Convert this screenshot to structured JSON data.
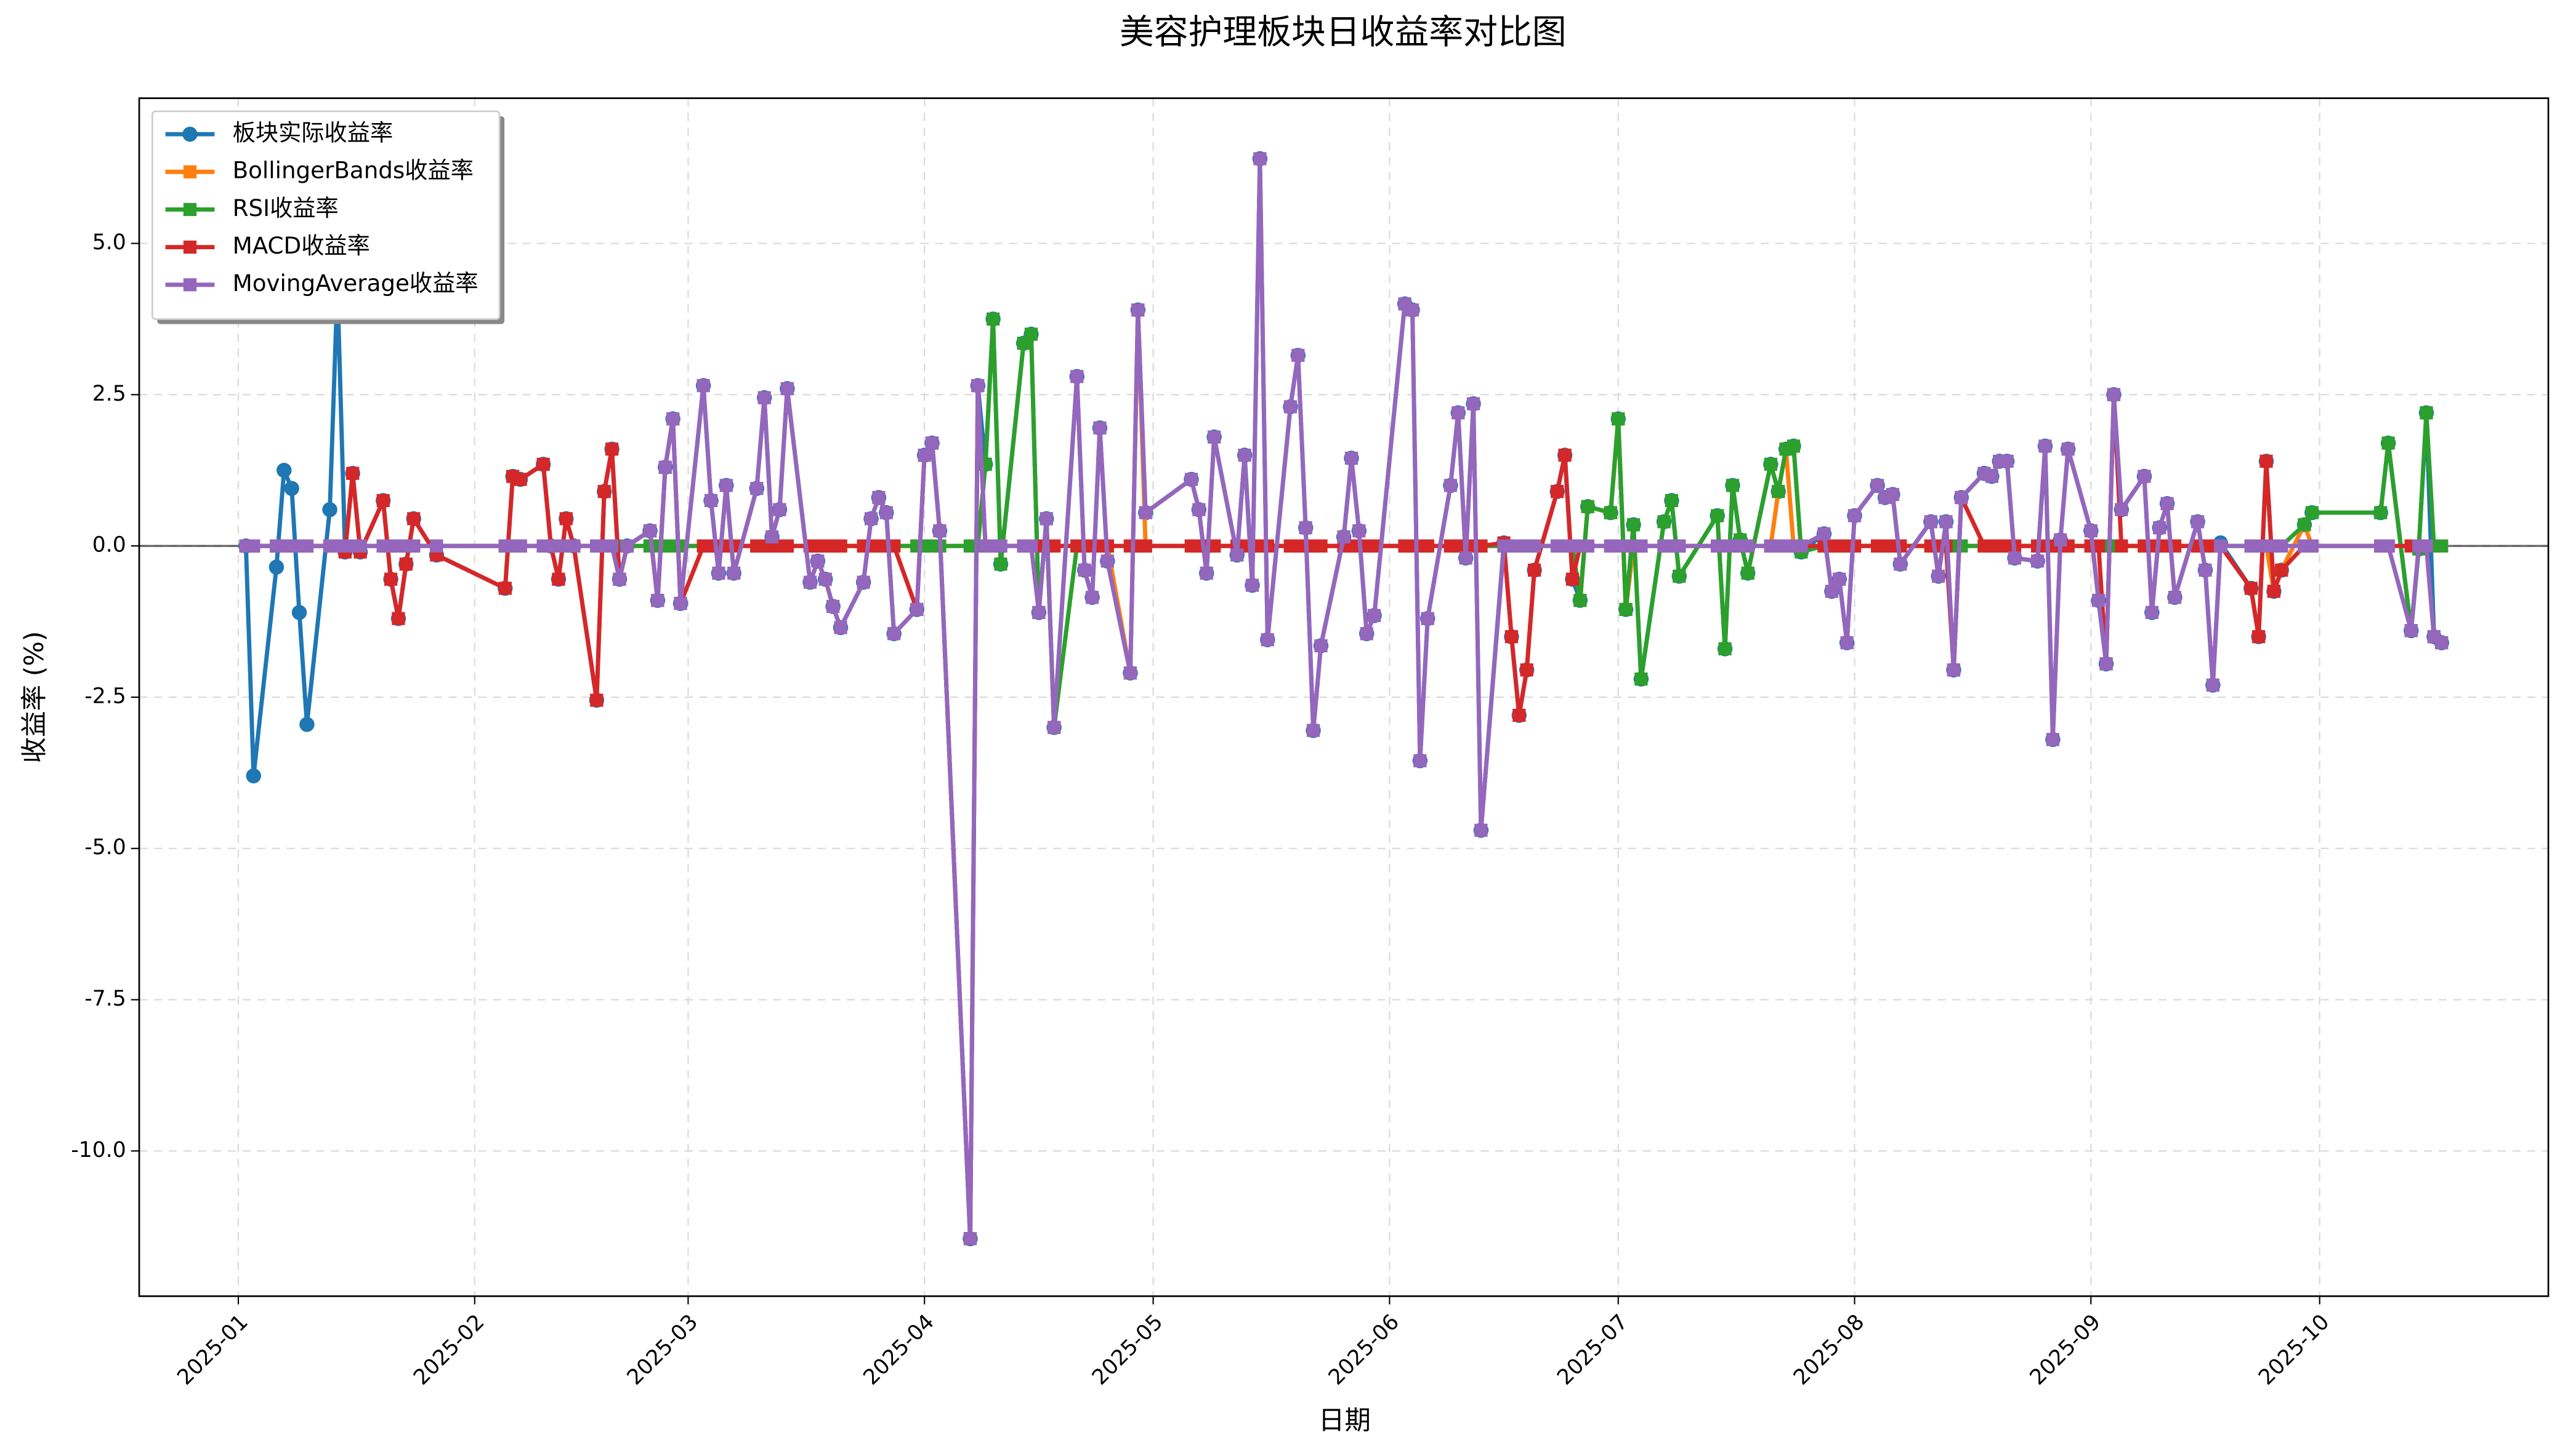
{
  "chart_data": {
    "type": "line",
    "title": "美容护理板块日收益率对比图",
    "xlabel": "日期",
    "ylabel": "收益率 (%)",
    "x": [
      "2025-01-02",
      "2025-01-03",
      "2025-01-06",
      "2025-01-07",
      "2025-01-08",
      "2025-01-09",
      "2025-01-10",
      "2025-01-13",
      "2025-01-14",
      "2025-01-15",
      "2025-01-16",
      "2025-01-17",
      "2025-01-20",
      "2025-01-21",
      "2025-01-22",
      "2025-01-23",
      "2025-01-24",
      "2025-01-27",
      "2025-02-05",
      "2025-02-06",
      "2025-02-07",
      "2025-02-10",
      "2025-02-11",
      "2025-02-12",
      "2025-02-13",
      "2025-02-14",
      "2025-02-17",
      "2025-02-18",
      "2025-02-19",
      "2025-02-20",
      "2025-02-21",
      "2025-02-24",
      "2025-02-25",
      "2025-02-26",
      "2025-02-27",
      "2025-02-28",
      "2025-03-03",
      "2025-03-04",
      "2025-03-05",
      "2025-03-06",
      "2025-03-07",
      "2025-03-10",
      "2025-03-11",
      "2025-03-12",
      "2025-03-13",
      "2025-03-14",
      "2025-03-17",
      "2025-03-18",
      "2025-03-19",
      "2025-03-20",
      "2025-03-21",
      "2025-03-24",
      "2025-03-25",
      "2025-03-26",
      "2025-03-27",
      "2025-03-28",
      "2025-03-31",
      "2025-04-01",
      "2025-04-02",
      "2025-04-03",
      "2025-04-07",
      "2025-04-08",
      "2025-04-09",
      "2025-04-10",
      "2025-04-11",
      "2025-04-14",
      "2025-04-15",
      "2025-04-16",
      "2025-04-17",
      "2025-04-18",
      "2025-04-21",
      "2025-04-22",
      "2025-04-23",
      "2025-04-24",
      "2025-04-25",
      "2025-04-28",
      "2025-04-29",
      "2025-04-30",
      "2025-05-06",
      "2025-05-07",
      "2025-05-08",
      "2025-05-09",
      "2025-05-12",
      "2025-05-13",
      "2025-05-14",
      "2025-05-15",
      "2025-05-16",
      "2025-05-19",
      "2025-05-20",
      "2025-05-21",
      "2025-05-22",
      "2025-05-23",
      "2025-05-26",
      "2025-05-27",
      "2025-05-28",
      "2025-05-29",
      "2025-05-30",
      "2025-06-03",
      "2025-06-04",
      "2025-06-05",
      "2025-06-06",
      "2025-06-09",
      "2025-06-10",
      "2025-06-11",
      "2025-06-12",
      "2025-06-13",
      "2025-06-16",
      "2025-06-17",
      "2025-06-18",
      "2025-06-19",
      "2025-06-20",
      "2025-06-23",
      "2025-06-24",
      "2025-06-25",
      "2025-06-26",
      "2025-06-27",
      "2025-06-30",
      "2025-07-01",
      "2025-07-02",
      "2025-07-03",
      "2025-07-04",
      "2025-07-07",
      "2025-07-08",
      "2025-07-09",
      "2025-07-14",
      "2025-07-15",
      "2025-07-16",
      "2025-07-17",
      "2025-07-18",
      "2025-07-21",
      "2025-07-22",
      "2025-07-23",
      "2025-07-24",
      "2025-07-25",
      "2025-07-28",
      "2025-07-29",
      "2025-07-30",
      "2025-07-31",
      "2025-08-01",
      "2025-08-04",
      "2025-08-05",
      "2025-08-06",
      "2025-08-07",
      "2025-08-11",
      "2025-08-12",
      "2025-08-13",
      "2025-08-14",
      "2025-08-15",
      "2025-08-18",
      "2025-08-19",
      "2025-08-20",
      "2025-08-21",
      "2025-08-22",
      "2025-08-25",
      "2025-08-26",
      "2025-08-27",
      "2025-08-28",
      "2025-08-29",
      "2025-09-01",
      "2025-09-02",
      "2025-09-03",
      "2025-09-04",
      "2025-09-05",
      "2025-09-08",
      "2025-09-09",
      "2025-09-10",
      "2025-09-11",
      "2025-09-12",
      "2025-09-15",
      "2025-09-16",
      "2025-09-17",
      "2025-09-18",
      "2025-09-22",
      "2025-09-23",
      "2025-09-24",
      "2025-09-25",
      "2025-09-26",
      "2025-09-29",
      "2025-09-30",
      "2025-10-09",
      "2025-10-10",
      "2025-10-13",
      "2025-10-14",
      "2025-10-15",
      "2025-10-16",
      "2025-10-17"
    ],
    "series": [
      {
        "name": "板块实际收益率",
        "color": "#1f77b4",
        "marker": "circle",
        "values": [
          0,
          -3.8,
          -0.35,
          1.25,
          0.95,
          -1.1,
          -2.95,
          0.6,
          4.3,
          -0.1,
          1.2,
          -0.1,
          0.75,
          -0.55,
          -1.2,
          -0.3,
          0.45,
          -0.15,
          -0.7,
          1.15,
          1.1,
          1.35,
          0,
          -0.55,
          0.45,
          0,
          -2.55,
          0.9,
          1.6,
          -0.55,
          0,
          0.25,
          -0.9,
          1.3,
          2.1,
          -0.95,
          2.65,
          0.75,
          -0.45,
          1.0,
          -0.45,
          0.95,
          2.45,
          0.15,
          0.6,
          2.6,
          -0.6,
          -0.25,
          -0.55,
          -1.0,
          -1.35,
          -0.6,
          0.45,
          0.8,
          0.55,
          -1.45,
          -1.05,
          1.5,
          1.7,
          0.25,
          -11.45,
          2.65,
          1.35,
          3.75,
          -0.3,
          3.35,
          3.5,
          -1.1,
          0.45,
          -3.0,
          2.8,
          -0.4,
          -0.85,
          1.95,
          -0.25,
          -2.1,
          3.9,
          0.55,
          1.1,
          0.6,
          -0.45,
          1.8,
          -0.15,
          1.5,
          -0.65,
          6.4,
          -1.55,
          2.3,
          3.15,
          0.3,
          -3.05,
          -1.65,
          0.15,
          1.45,
          0.25,
          -1.45,
          -1.15,
          4.0,
          3.9,
          -3.55,
          -1.2,
          1.0,
          2.2,
          -0.2,
          2.35,
          -4.7,
          0.05,
          -1.5,
          -2.8,
          -2.05,
          -0.4,
          0.9,
          1.5,
          -0.55,
          -0.9,
          0.65,
          0.55,
          2.1,
          -1.05,
          0.35,
          -2.2,
          0.4,
          0.75,
          -0.5,
          0.5,
          -1.7,
          1.0,
          0.1,
          -0.45,
          1.35,
          0.9,
          1.6,
          1.65,
          -0.1,
          0.2,
          -0.75,
          -0.55,
          -1.6,
          0.5,
          1.0,
          0.8,
          0.85,
          -0.3,
          0.4,
          -0.5,
          0.4,
          -2.05,
          0.8,
          1.2,
          1.15,
          1.4,
          1.4,
          -0.2,
          -0.25,
          1.65,
          -3.2,
          0.1,
          1.6,
          0.25,
          -0.9,
          -1.95,
          2.5,
          0.6,
          1.15,
          -1.1,
          0.3,
          0.7,
          -0.85,
          0.4,
          -0.4,
          -2.3,
          0.05,
          -0.7,
          -1.5,
          1.4,
          -0.75,
          -0.4,
          0.35,
          0.55,
          0.55,
          1.7,
          -1.4,
          -0.05,
          2.2,
          -1.5,
          -1.6
        ]
      },
      {
        "name": "BollingerBands收益率",
        "color": "#ff7f0e",
        "marker": "square",
        "values": [
          0,
          0,
          0,
          0,
          0,
          0,
          0,
          0,
          0,
          0,
          0,
          0,
          0,
          0,
          0,
          0,
          0,
          0,
          0,
          0,
          0,
          0,
          0,
          0,
          0,
          0,
          0,
          0,
          0,
          0,
          0,
          0,
          0,
          0,
          0,
          0,
          0,
          0,
          0,
          0,
          0,
          0,
          0,
          0,
          0,
          0,
          0,
          0,
          0,
          0,
          0,
          0,
          0,
          0,
          0,
          0,
          0,
          0,
          0,
          0,
          0,
          0,
          0,
          0,
          0,
          0,
          0,
          0,
          0,
          0,
          0,
          0,
          0,
          0,
          0,
          -2.1,
          3.9,
          0,
          0,
          0,
          0,
          0,
          0,
          0,
          0,
          0,
          0,
          0,
          0,
          0,
          0,
          0,
          0,
          0,
          0,
          0,
          0,
          0,
          0,
          0,
          0,
          0,
          0,
          0,
          0,
          0,
          0,
          0,
          0,
          0,
          0,
          0,
          0,
          0,
          -0.9,
          0.65,
          0.55,
          2.1,
          -1.05,
          0,
          0,
          0,
          0,
          0,
          0,
          0,
          0,
          0,
          0,
          0,
          0.9,
          1.6,
          0,
          0,
          0,
          0,
          0,
          0,
          0,
          0,
          0,
          0,
          0,
          0,
          0,
          0,
          0,
          0,
          0,
          0,
          0,
          0,
          0,
          0,
          0,
          0,
          0,
          0,
          0,
          0,
          0,
          0,
          0,
          0,
          0,
          0,
          0,
          0,
          0,
          0,
          0,
          0,
          0,
          0,
          0,
          -0.75,
          -0.4,
          0.35,
          0,
          0,
          0,
          0,
          0,
          0,
          0,
          0
        ]
      },
      {
        "name": "RSI收益率",
        "color": "#2ca02c",
        "marker": "square",
        "values": [
          0,
          0,
          0,
          0,
          0,
          0,
          0,
          0,
          0,
          0,
          0,
          0,
          0,
          0,
          0,
          0,
          0,
          0,
          0,
          0,
          0,
          0,
          0,
          0,
          0,
          0,
          0,
          0,
          0,
          0,
          0,
          0,
          0,
          0,
          0,
          0,
          0,
          0,
          0,
          0,
          0,
          0,
          0,
          0,
          0,
          0,
          0,
          0,
          0,
          0,
          0,
          0,
          0,
          0,
          0,
          0,
          0,
          0,
          0,
          0,
          0,
          0,
          1.35,
          3.75,
          -0.3,
          3.35,
          3.5,
          -1.1,
          0.45,
          -3.0,
          0,
          0,
          0,
          0,
          0,
          0,
          0,
          0,
          0,
          0,
          0,
          0,
          0,
          0,
          0,
          0,
          0,
          0,
          0,
          0,
          0,
          0,
          0,
          0,
          0,
          0,
          0,
          0,
          0,
          0,
          0,
          0,
          0,
          0,
          0,
          0,
          0,
          0,
          0,
          0,
          0,
          0,
          0,
          0,
          -0.9,
          0.65,
          0.55,
          2.1,
          -1.05,
          0.35,
          -2.2,
          0.4,
          0.75,
          -0.5,
          0.5,
          -1.7,
          1.0,
          0.1,
          -0.45,
          1.35,
          0.9,
          1.6,
          1.65,
          -0.1,
          0,
          0,
          0,
          0,
          0,
          0,
          0,
          0,
          0,
          0,
          0,
          0,
          0,
          0,
          0,
          0,
          0,
          0,
          0,
          0,
          0,
          0,
          0,
          0,
          0,
          0,
          0,
          0,
          0,
          0,
          0,
          0,
          0,
          0,
          0,
          0,
          0,
          0,
          0,
          0,
          0,
          0,
          0,
          0.35,
          0.55,
          0.55,
          1.7,
          -1.4,
          -0.05,
          2.2,
          0,
          0
        ]
      },
      {
        "name": "MACD收益率",
        "color": "#d62728",
        "marker": "square",
        "values": [
          0,
          0,
          0,
          0,
          0,
          0,
          0,
          0,
          0,
          -0.1,
          1.2,
          -0.1,
          0.75,
          -0.55,
          -1.2,
          -0.3,
          0.45,
          -0.15,
          -0.7,
          1.15,
          1.1,
          1.35,
          0,
          -0.55,
          0.45,
          0,
          -2.55,
          0.9,
          1.6,
          -0.55,
          0,
          0.25,
          -0.9,
          1.3,
          2.1,
          -0.95,
          0,
          0,
          0,
          0,
          0,
          0,
          0,
          0,
          0,
          0,
          0,
          0,
          0,
          0,
          0,
          0,
          0,
          0,
          0,
          0,
          -1.05,
          1.5,
          1.7,
          0.25,
          -11.45,
          2.65,
          0,
          0,
          0,
          0,
          0,
          0,
          0,
          0,
          0,
          0,
          0,
          0,
          0,
          0,
          0,
          0,
          0,
          0,
          0,
          0,
          0,
          0,
          0,
          0,
          0,
          0,
          0,
          0,
          0,
          0,
          0,
          0,
          0,
          0,
          0,
          0,
          0,
          0,
          0,
          0,
          0,
          0,
          0,
          0,
          0.05,
          -1.5,
          -2.8,
          -2.05,
          -0.4,
          0.9,
          1.5,
          -0.55,
          0,
          0,
          0,
          0,
          0,
          0,
          0,
          0,
          0,
          0,
          0,
          0,
          0,
          0,
          0,
          0,
          0,
          0,
          0,
          0,
          0,
          0,
          0,
          0,
          0,
          0,
          0,
          0,
          0,
          0,
          0,
          0,
          -2.05,
          0.8,
          0,
          0,
          0,
          0,
          0,
          0,
          0,
          0,
          0,
          0,
          0,
          0,
          -1.95,
          2.5,
          0,
          0,
          0,
          0,
          0,
          0,
          0,
          0,
          0,
          0,
          -0.7,
          -1.5,
          1.4,
          -0.75,
          -0.4,
          0,
          0,
          0,
          0,
          0,
          0,
          0,
          -1.5,
          -1.6
        ]
      },
      {
        "name": "MovingAverage收益率",
        "color": "#9467bd",
        "marker": "square",
        "values": [
          0,
          0,
          0,
          0,
          0,
          0,
          0,
          0,
          0,
          0,
          0,
          0,
          0,
          0,
          0,
          0,
          0,
          0,
          0,
          0,
          0,
          0,
          0,
          0,
          0,
          0,
          0,
          0,
          0,
          -0.55,
          0,
          0.25,
          -0.9,
          1.3,
          2.1,
          -0.95,
          2.65,
          0.75,
          -0.45,
          1.0,
          -0.45,
          0.95,
          2.45,
          0.15,
          0.6,
          2.6,
          -0.6,
          -0.25,
          -0.55,
          -1.0,
          -1.35,
          -0.6,
          0.45,
          0.8,
          0.55,
          -1.45,
          -1.05,
          1.5,
          1.7,
          0.25,
          -11.45,
          2.65,
          0,
          0,
          0,
          0,
          0,
          -1.1,
          0.45,
          -3.0,
          2.8,
          -0.4,
          -0.85,
          1.95,
          -0.25,
          -2.1,
          3.9,
          0.55,
          1.1,
          0.6,
          -0.45,
          1.8,
          -0.15,
          1.5,
          -0.65,
          6.4,
          -1.55,
          2.3,
          3.15,
          0.3,
          -3.05,
          -1.65,
          0.15,
          1.45,
          0.25,
          -1.45,
          -1.15,
          4.0,
          3.9,
          -3.55,
          -1.2,
          1.0,
          2.2,
          -0.2,
          2.35,
          -4.7,
          0,
          0,
          0,
          0,
          0,
          0,
          0,
          0,
          0,
          0,
          0,
          0,
          0,
          0,
          0,
          0,
          0,
          0,
          0,
          0,
          0,
          0,
          0,
          0,
          0,
          0,
          0,
          0,
          0.2,
          -0.75,
          -0.55,
          -1.6,
          0.5,
          1.0,
          0.8,
          0.85,
          -0.3,
          0.4,
          -0.5,
          0.4,
          -2.05,
          0.8,
          1.2,
          1.15,
          1.4,
          1.4,
          -0.2,
          -0.25,
          1.65,
          -3.2,
          0.1,
          1.6,
          0.25,
          -0.9,
          -1.95,
          2.5,
          0.6,
          1.15,
          -1.1,
          0.3,
          0.7,
          -0.85,
          0.4,
          -0.4,
          -2.3,
          0,
          0,
          0,
          0,
          0,
          0,
          0,
          0,
          0,
          0,
          -1.4,
          0,
          0,
          -1.5,
          -1.6
        ]
      }
    ],
    "xlim": [
      "2024-12-19",
      "2025-10-31"
    ],
    "xticks": [
      {
        "value": "2025-01-01",
        "label": "2025-01"
      },
      {
        "value": "2025-02-01",
        "label": "2025-02"
      },
      {
        "value": "2025-03-01",
        "label": "2025-03"
      },
      {
        "value": "2025-04-01",
        "label": "2025-04"
      },
      {
        "value": "2025-05-01",
        "label": "2025-05"
      },
      {
        "value": "2025-06-01",
        "label": "2025-06"
      },
      {
        "value": "2025-07-01",
        "label": "2025-07"
      },
      {
        "value": "2025-08-01",
        "label": "2025-08"
      },
      {
        "value": "2025-09-01",
        "label": "2025-09"
      },
      {
        "value": "2025-10-01",
        "label": "2025-10"
      }
    ],
    "ylim": [
      -12.4,
      7.4
    ],
    "yticks": [
      {
        "value": -10,
        "label": "-10.0"
      },
      -7.5,
      {
        "value": -5,
        "label": "-5.0"
      },
      -2.5,
      {
        "value": 0,
        "label": "0.0"
      },
      2.5,
      {
        "value": 5,
        "label": "5.0"
      }
    ],
    "axhline": 0,
    "grid": true,
    "legend": "upper left"
  }
}
